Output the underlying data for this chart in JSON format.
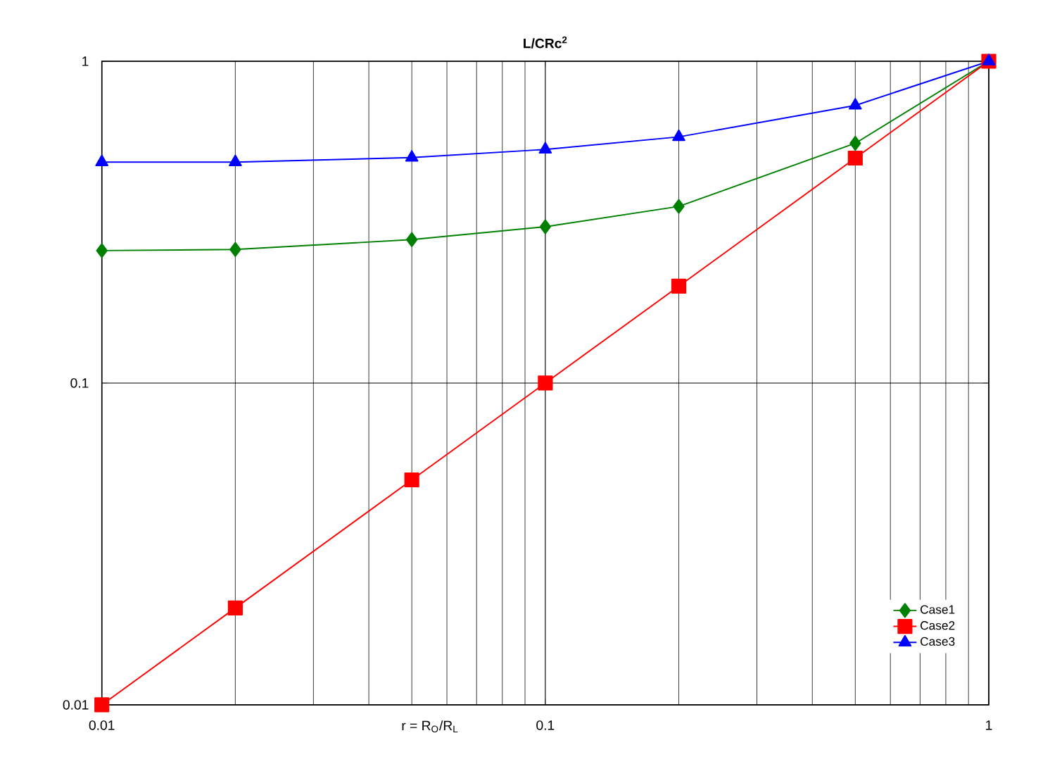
{
  "chart_data": {
    "type": "line",
    "title": "**L/CRc$^{2}$**",
    "xlabel": "r = R$_{O}$/R$_{L}$",
    "log": "xy",
    "grid": true,
    "legend": "bottom right",
    "x": [
      0.01,
      0.02,
      0.05,
      0.1,
      0.2,
      0.5,
      1
    ],
    "xlim": [
      0.01,
      1
    ],
    "ylim": [
      0.01,
      1
    ],
    "xticks": [
      0.01,
      0.1,
      1
    ],
    "yticks": [
      0.01,
      0.1,
      1
    ],
    "series": [
      {
        "name": "Case1",
        "color": "#008000",
        "marker": "diamond",
        "values": [
          0.258,
          0.26,
          0.279,
          0.306,
          0.354,
          0.556,
          1
        ]
      },
      {
        "name": "Case2",
        "color": "#ff0000",
        "marker": "square",
        "values": [
          0.01,
          0.02,
          0.05,
          0.1,
          0.2,
          0.5,
          1
        ]
      },
      {
        "name": "Case3",
        "color": "#0000ff",
        "marker": "triangle",
        "values": [
          0.486,
          0.486,
          0.502,
          0.532,
          0.582,
          0.729,
          1
        ]
      }
    ]
  }
}
